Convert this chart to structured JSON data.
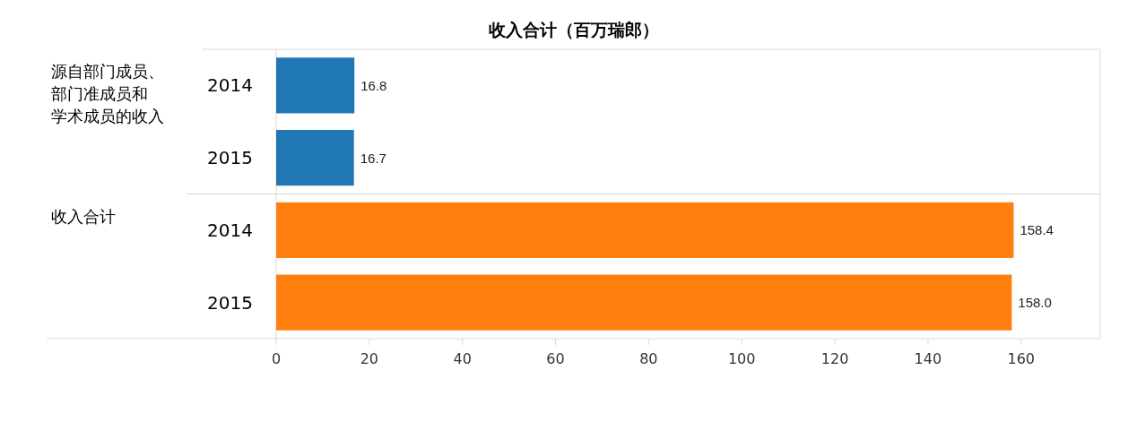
{
  "chart_data": {
    "type": "bar",
    "orientation": "horizontal",
    "title": "收入合计（百万瑞郎）",
    "categories": [
      "2014",
      "2015",
      "2014",
      "2015"
    ],
    "series": [
      {
        "color": "#1f77b4",
        "values": [
          16.8,
          16.7,
          null,
          null
        ],
        "value_labels": [
          "16.8",
          "16.7",
          null,
          null
        ]
      },
      {
        "color": "#ff7f0e",
        "values": [
          null,
          null,
          158.4,
          158.0
        ],
        "value_labels": [
          null,
          null,
          "158.4",
          "158.0"
        ]
      }
    ],
    "annotations": [
      "源自部门成员、部门准成员和学术成员的收入",
      "收入合计"
    ],
    "xlim": [
      0,
      177
    ],
    "xticks": [
      0,
      20,
      40,
      60,
      80,
      100,
      120,
      140,
      160
    ]
  }
}
